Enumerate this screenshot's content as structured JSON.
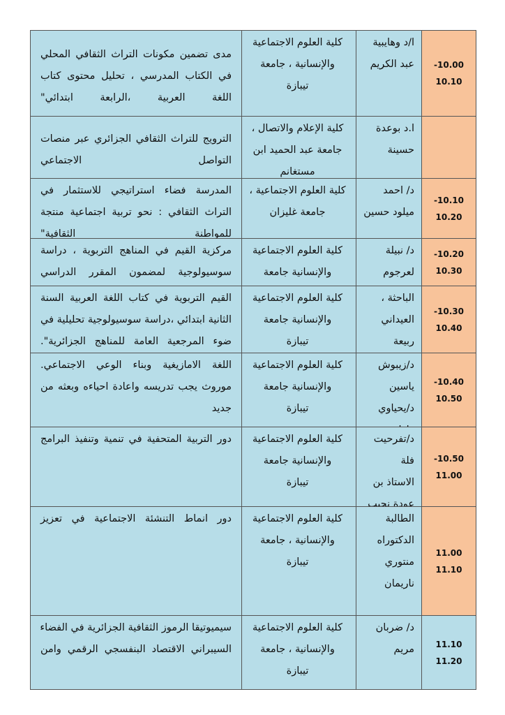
{
  "table": {
    "rows": [
      {
        "time": [
          "-10.00",
          "10.10"
        ],
        "name": [
          "ا/د وهايبية",
          "عبد الكريم"
        ],
        "affiliation": [
          "كلية العلوم الاجتماعية",
          "والإنسانية ، جامعة",
          "تيبازة"
        ],
        "title": [
          "مدى تضمين مكونات التراث الثقافي المحلي",
          "في الكتاب المدرسي ، تحليل  محتوى كتاب",
          "اللغة العربية ،الرابعة ابتدائي\""
        ]
      },
      {
        "time": [],
        "name": [
          "ا.د بوعدة",
          "حسينة"
        ],
        "affiliation": [
          "كلية الإعلام والاتصال ،",
          "جامعة عبد الحميد ابن",
          "مستغانم"
        ],
        "title": [
          "الترويج للتراث الثقافي الجزائري عبر منصات",
          "التواصل الاجتماعي"
        ]
      },
      {
        "time": [
          "-10.10",
          "10.20"
        ],
        "name": [
          "د/  احمد",
          "ميلود حسين"
        ],
        "affiliation": [
          "كلية العلوم الاجتماعية ،",
          "جامعة غليزان"
        ],
        "title": [
          "المدرسة فضاء استراتيجي للاستثمار في",
          "التراث الثقافي : نحو تربية اجتماعية منتجة",
          "للمواطنة الثقافية\""
        ]
      },
      {
        "time": [
          "-10.20",
          "10.30"
        ],
        "name": [
          "د/  نبيلة",
          "لعرجوم"
        ],
        "affiliation": [
          "كلية العلوم الاجتماعية",
          "والإنسانية   جامعة"
        ],
        "title": [
          "مركزية القيم في المناهج التربوية ، دراسة",
          "سوسيولوجية لمضمون المقرر الدراسي"
        ]
      },
      {
        "time": [
          "-10.30",
          "10.40"
        ],
        "name": [
          "الباحثة ،",
          "العيداني",
          "ربيعة"
        ],
        "affiliation": [
          "كلية العلوم الاجتماعية",
          "والإنسانية   جامعة",
          "تيبازة"
        ],
        "title": [
          "القيم التربوية في كتاب اللغة العربية السنة",
          "الثانية ابتدائي ،دراسة سوسيولوجية تحليلية في",
          "ضوء المرجعية العامة للمناهج الجزائرية\"."
        ]
      },
      {
        "time": [
          "-10.40",
          "10.50"
        ],
        "name": [
          "د/زيبوش",
          "ياسين",
          "د/يحياوي",
          "فاطمة"
        ],
        "affiliation": [
          "كلية العلوم الاجتماعية",
          "والإنسانية   جامعة",
          "تيبازة"
        ],
        "title": [
          "اللغة الامازيغية وبناء الوعي الاجتماعي.",
          "موروث يجب تدريسه واعادة احياءه وبعثه من",
          "جديد"
        ]
      },
      {
        "time": [
          "-10.50",
          "11.00"
        ],
        "name": [
          "د/تفرحيت",
          "فلة",
          "الاستاذ بن",
          "عودة نجيب"
        ],
        "affiliation": [
          "كلية العلوم الاجتماعية",
          "والإنسانية   جامعة",
          "تيبازة"
        ],
        "title": [
          "دور التربية المتحفية في تنمية وتنفيذ البرامج"
        ]
      },
      {
        "time": [
          "11.00",
          "11.10"
        ],
        "name": [
          "الطالبة",
          "الدكتوراه",
          "منتوري",
          "ناريمان"
        ],
        "affiliation": [
          "كلية العلوم الاجتماعية",
          "والإنسانية ، جامعة",
          "تيبازة"
        ],
        "title": [
          "دور انماط التنشئة الاجتماعية في تعزيز"
        ]
      },
      {
        "time": [
          "11.10",
          "11.20"
        ],
        "name": [
          "د/ ضربان",
          "مريم"
        ],
        "affiliation": [
          "كلية العلوم الاجتماعية",
          "والإنسانية  ، جامعة",
          "تيبازة"
        ],
        "title": [
          "سيميوتيقا الرموز الثقافية الجزائرية في الفضاء",
          "السيبراني الاقتصاد البنفسجي الرقمي وامن"
        ]
      }
    ]
  }
}
